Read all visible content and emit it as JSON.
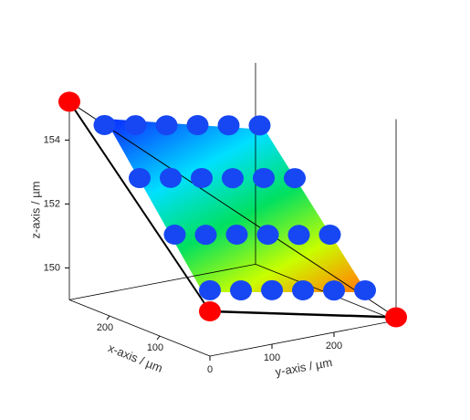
{
  "chart_data": {
    "type": "scatter3d",
    "xlabel": "x-axis / µm",
    "ylabel": "y-axis / µm",
    "zlabel": "z-axis / µm",
    "xlim": [
      0,
      280
    ],
    "ylim": [
      0,
      300
    ],
    "zlim": [
      149,
      155.3
    ],
    "xticks": [
      100,
      200
    ],
    "yticks": [
      0,
      100,
      200
    ],
    "zticks": [
      150,
      152,
      154
    ],
    "series": [
      {
        "color": "#1747f2",
        "x": [
          0,
          0,
          0,
          0,
          0,
          0,
          70,
          70,
          70,
          70,
          70,
          70,
          140,
          140,
          140,
          140,
          140,
          140,
          210,
          210,
          210,
          210,
          210,
          210
        ],
        "y": [
          0,
          50,
          100,
          150,
          200,
          250,
          0,
          50,
          100,
          150,
          200,
          250,
          0,
          50,
          100,
          150,
          200,
          250,
          0,
          50,
          100,
          150,
          200,
          250
        ],
        "z": [
          151.06,
          150.87,
          150.69,
          150.5,
          150.31,
          150.13,
          152.36,
          152.17,
          151.99,
          151.8,
          151.61,
          151.43,
          153.69,
          153.51,
          153.32,
          153.13,
          152.95,
          152.76,
          154.91,
          154.72,
          154.53,
          154.35,
          154.16,
          153.97
        ]
      },
      {
        "color": "#ff0000",
        "x": [
          280,
          0,
          0
        ],
        "y": [
          0,
          0,
          300
        ],
        "z": [
          155.2,
          150.4,
          149.1
        ]
      }
    ]
  }
}
